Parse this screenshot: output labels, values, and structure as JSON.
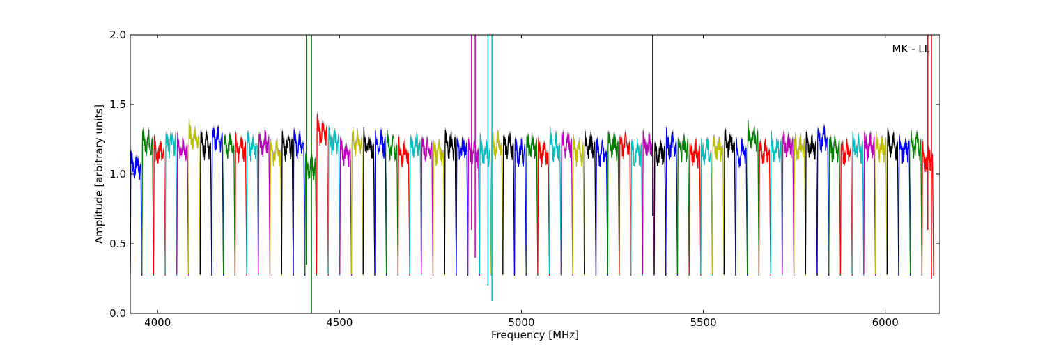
{
  "chart_data": {
    "type": "line",
    "title": "",
    "annotation": "MK - LL",
    "xlabel": "Frequency [MHz]",
    "ylabel": "Amplitude [arbitrary units]",
    "xlim": [
      3925,
      6150
    ],
    "ylim": [
      0.0,
      2.0
    ],
    "xticks": [
      4000,
      4500,
      5000,
      5500,
      6000
    ],
    "yticks": [
      0.0,
      0.5,
      1.0,
      1.5,
      2.0
    ],
    "xtick_labels": [
      "4000",
      "4500",
      "5000",
      "5500",
      "6000"
    ],
    "ytick_labels": [
      "0.0",
      "0.5",
      "1.0",
      "1.5",
      "2.0"
    ],
    "grid": false,
    "background_series_color": "#b3b3b3",
    "palette": [
      "#0000ff",
      "#008000",
      "#ff0000",
      "#00bfbf",
      "#bf00bf",
      "#bfbf00",
      "#000000"
    ],
    "channel_width_mhz": 32,
    "channels": [
      {
        "start": 3925,
        "level": 1.05,
        "color": "#0000ff"
      },
      {
        "start": 3957,
        "level": 1.22,
        "color": "#008000"
      },
      {
        "start": 3989,
        "level": 1.15,
        "color": "#ff0000"
      },
      {
        "start": 4021,
        "level": 1.22,
        "color": "#00bfbf"
      },
      {
        "start": 4053,
        "level": 1.18,
        "color": "#bf00bf"
      },
      {
        "start": 4085,
        "level": 1.25,
        "color": "#bfbf00"
      },
      {
        "start": 4117,
        "level": 1.2,
        "color": "#000000"
      },
      {
        "start": 4149,
        "level": 1.25,
        "color": "#0000ff"
      },
      {
        "start": 4181,
        "level": 1.2,
        "color": "#008000"
      },
      {
        "start": 4213,
        "level": 1.18,
        "color": "#ff0000"
      },
      {
        "start": 4245,
        "level": 1.2,
        "color": "#00bfbf"
      },
      {
        "start": 4277,
        "level": 1.22,
        "color": "#bf00bf"
      },
      {
        "start": 4309,
        "level": 1.15,
        "color": "#bfbf00"
      },
      {
        "start": 4341,
        "level": 1.2,
        "color": "#000000"
      },
      {
        "start": 4373,
        "level": 1.22,
        "color": "#0000ff"
      },
      {
        "start": 4405,
        "level": 1.05,
        "color": "#008000"
      },
      {
        "start": 4437,
        "level": 1.3,
        "color": "#ff0000"
      },
      {
        "start": 4469,
        "level": 1.22,
        "color": "#00bfbf"
      },
      {
        "start": 4501,
        "level": 1.15,
        "color": "#bf00bf"
      },
      {
        "start": 4533,
        "level": 1.22,
        "color": "#bfbf00"
      },
      {
        "start": 4565,
        "level": 1.2,
        "color": "#000000"
      },
      {
        "start": 4597,
        "level": 1.22,
        "color": "#0000ff"
      },
      {
        "start": 4629,
        "level": 1.2,
        "color": "#008000"
      },
      {
        "start": 4661,
        "level": 1.15,
        "color": "#ff0000"
      },
      {
        "start": 4693,
        "level": 1.2,
        "color": "#00bfbf"
      },
      {
        "start": 4725,
        "level": 1.18,
        "color": "#bf00bf"
      },
      {
        "start": 4757,
        "level": 1.15,
        "color": "#bfbf00"
      },
      {
        "start": 4789,
        "level": 1.2,
        "color": "#000000"
      },
      {
        "start": 4821,
        "level": 1.18,
        "color": "#0000ff"
      },
      {
        "start": 4853,
        "level": 1.15,
        "color": "#bf00bf"
      },
      {
        "start": 4885,
        "level": 1.15,
        "color": "#00bfbf"
      },
      {
        "start": 4917,
        "level": 1.2,
        "color": "#bfbf00"
      },
      {
        "start": 4949,
        "level": 1.2,
        "color": "#000000"
      },
      {
        "start": 4981,
        "level": 1.15,
        "color": "#0000ff"
      },
      {
        "start": 5013,
        "level": 1.2,
        "color": "#008000"
      },
      {
        "start": 5045,
        "level": 1.15,
        "color": "#ff0000"
      },
      {
        "start": 5077,
        "level": 1.2,
        "color": "#00bfbf"
      },
      {
        "start": 5109,
        "level": 1.22,
        "color": "#bf00bf"
      },
      {
        "start": 5141,
        "level": 1.15,
        "color": "#bfbf00"
      },
      {
        "start": 5173,
        "level": 1.2,
        "color": "#000000"
      },
      {
        "start": 5205,
        "level": 1.15,
        "color": "#0000ff"
      },
      {
        "start": 5237,
        "level": 1.2,
        "color": "#008000"
      },
      {
        "start": 5269,
        "level": 1.2,
        "color": "#ff0000"
      },
      {
        "start": 5301,
        "level": 1.15,
        "color": "#00bfbf"
      },
      {
        "start": 5333,
        "level": 1.2,
        "color": "#bf00bf"
      },
      {
        "start": 5365,
        "level": 1.15,
        "color": "#000000"
      },
      {
        "start": 5397,
        "level": 1.2,
        "color": "#0000ff"
      },
      {
        "start": 5429,
        "level": 1.18,
        "color": "#008000"
      },
      {
        "start": 5461,
        "level": 1.15,
        "color": "#ff0000"
      },
      {
        "start": 5493,
        "level": 1.15,
        "color": "#00bfbf"
      },
      {
        "start": 5525,
        "level": 1.18,
        "color": "#bfbf00"
      },
      {
        "start": 5557,
        "level": 1.22,
        "color": "#000000"
      },
      {
        "start": 5589,
        "level": 1.15,
        "color": "#0000ff"
      },
      {
        "start": 5621,
        "level": 1.25,
        "color": "#008000"
      },
      {
        "start": 5653,
        "level": 1.15,
        "color": "#ff0000"
      },
      {
        "start": 5685,
        "level": 1.18,
        "color": "#00bfbf"
      },
      {
        "start": 5717,
        "level": 1.2,
        "color": "#bf00bf"
      },
      {
        "start": 5749,
        "level": 1.18,
        "color": "#bfbf00"
      },
      {
        "start": 5781,
        "level": 1.2,
        "color": "#000000"
      },
      {
        "start": 5813,
        "level": 1.25,
        "color": "#0000ff"
      },
      {
        "start": 5845,
        "level": 1.18,
        "color": "#008000"
      },
      {
        "start": 5877,
        "level": 1.15,
        "color": "#ff0000"
      },
      {
        "start": 5909,
        "level": 1.18,
        "color": "#00bfbf"
      },
      {
        "start": 5941,
        "level": 1.2,
        "color": "#bf00bf"
      },
      {
        "start": 5973,
        "level": 1.18,
        "color": "#bfbf00"
      },
      {
        "start": 6005,
        "level": 1.2,
        "color": "#000000"
      },
      {
        "start": 6037,
        "level": 1.18,
        "color": "#0000ff"
      },
      {
        "start": 6069,
        "level": 1.2,
        "color": "#008000"
      },
      {
        "start": 6101,
        "level": 1.1,
        "color": "#ff0000"
      }
    ],
    "spikes": [
      {
        "x": 4409,
        "y_min": 0.35,
        "y_max": 2.0,
        "color": "#008000"
      },
      {
        "x": 4423,
        "y_min": 0.0,
        "y_max": 2.0,
        "color": "#008000"
      },
      {
        "x": 4863,
        "y_min": 0.6,
        "y_max": 2.0,
        "color": "#bf00bf"
      },
      {
        "x": 4873,
        "y_min": 0.4,
        "y_max": 2.0,
        "color": "#bf00bf"
      },
      {
        "x": 4908,
        "y_min": 0.2,
        "y_max": 2.0,
        "color": "#00bfbf"
      },
      {
        "x": 4919,
        "y_min": 0.09,
        "y_max": 2.0,
        "color": "#00bfbf"
      },
      {
        "x": 5361,
        "y_min": 0.7,
        "y_max": 2.0,
        "color": "#000000"
      },
      {
        "x": 6117,
        "y_min": 0.6,
        "y_max": 2.0,
        "color": "#ff0000"
      },
      {
        "x": 6127,
        "y_min": 0.25,
        "y_max": 2.0,
        "color": "#ff0000"
      }
    ]
  }
}
